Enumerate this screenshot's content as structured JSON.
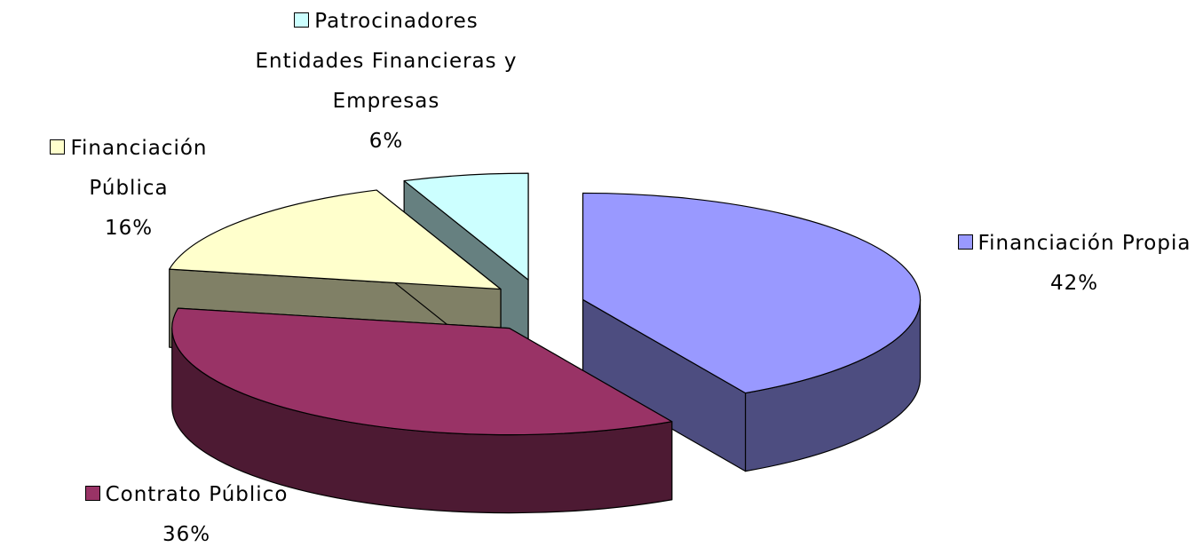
{
  "chart_data": {
    "type": "pie",
    "three_d": true,
    "exploded": true,
    "categories": [
      "Financiación Propia",
      "Contrato Público",
      "Financiación Pública",
      "Patrocinadores Entidades Financieras y Empresas"
    ],
    "values": [
      42,
      36,
      16,
      6
    ],
    "value_labels": [
      "42%",
      "36%",
      "16%",
      "6%"
    ],
    "colors": [
      "#9999ff",
      "#993366",
      "#ffffcc",
      "#ccffff"
    ]
  }
}
